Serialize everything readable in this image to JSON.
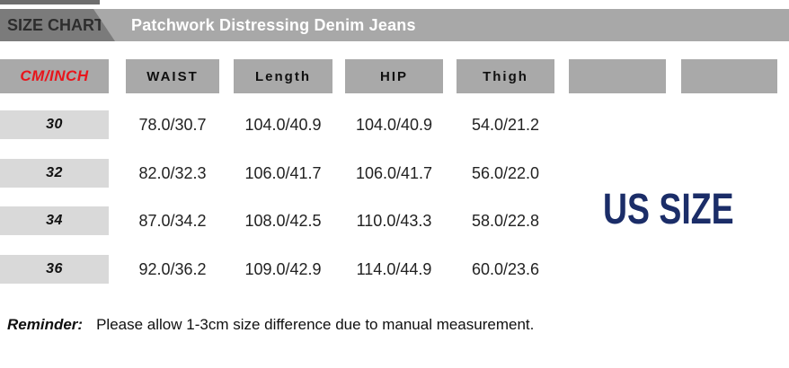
{
  "header": {
    "badge_label": "SIZE CHART",
    "product_title": "Patchwork Distressing Denim Jeans"
  },
  "table": {
    "column_headers": [
      "CM/INCH",
      "WAIST",
      "Length",
      "HIP",
      "Thigh",
      "",
      ""
    ],
    "rows": [
      {
        "label": "30",
        "values": [
          "78.0/30.7",
          "104.0/40.9",
          "104.0/40.9",
          "54.0/21.2"
        ]
      },
      {
        "label": "32",
        "values": [
          "82.0/32.3",
          "106.0/41.7",
          "106.0/41.7",
          "56.0/22.0"
        ]
      },
      {
        "label": "34",
        "values": [
          "87.0/34.2",
          "108.0/42.5",
          "110.0/43.3",
          "58.0/22.8"
        ]
      },
      {
        "label": "36",
        "values": [
          "92.0/36.2",
          "109.0/42.9",
          "114.0/44.9",
          "60.0/23.6"
        ]
      }
    ]
  },
  "side_label": "US SIZE",
  "reminder": {
    "label": "Reminder:",
    "text": "Please allow 1-3cm size difference due to manual measurement."
  },
  "colors": {
    "header_bar_gray": "#a8a8a8",
    "badge_box_gray": "#7b7b7b",
    "table_header_gray": "#a9a9a9",
    "row_label_gray": "#d9d9d9",
    "cm_inch_red": "#e8151b",
    "us_size_navy": "#1b2d68"
  }
}
